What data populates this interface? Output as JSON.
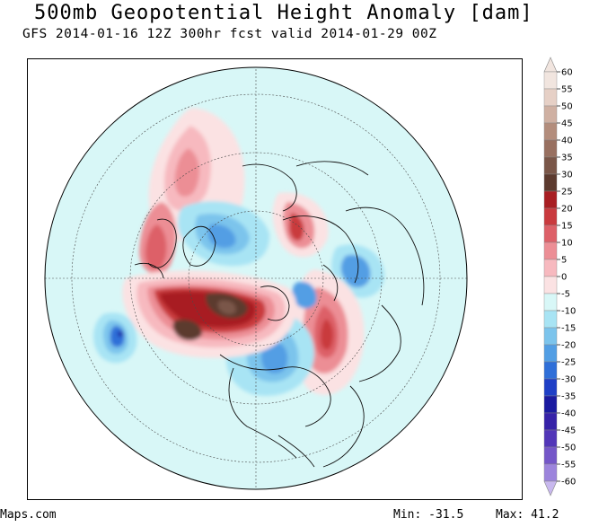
{
  "title": "500mb Geopotential Height Anomaly [dam]",
  "subtitle": "GFS 2014-01-16 12Z 300hr fcst valid 2014-01-29 00Z",
  "footer": {
    "credit": "Maps.com",
    "min_label": "Min:",
    "min_value": "-31.5",
    "max_label": "Max:",
    "max_value": "41.2"
  },
  "colorbar": {
    "levels": [
      {
        "label": "60",
        "color": "#f1e5df"
      },
      {
        "label": "55",
        "color": "#e6d0c6"
      },
      {
        "label": "50",
        "color": "#cfb0a2"
      },
      {
        "label": "45",
        "color": "#b38d7c"
      },
      {
        "label": "40",
        "color": "#987060"
      },
      {
        "label": "35",
        "color": "#7a5648"
      },
      {
        "label": "30",
        "color": "#5c3a2e"
      },
      {
        "label": "25",
        "color": "#a81e22"
      },
      {
        "label": "20",
        "color": "#c93a3e"
      },
      {
        "label": "15",
        "color": "#dd6068"
      },
      {
        "label": "10",
        "color": "#ec8e95"
      },
      {
        "label": "5",
        "color": "#f7b9bf"
      },
      {
        "label": "0",
        "color": "#fbe2e3"
      },
      {
        "label": "-5",
        "color": "#d8f7f7"
      },
      {
        "label": "-10",
        "color": "#a8e4f4"
      },
      {
        "label": "-15",
        "color": "#7cc4ec"
      },
      {
        "label": "-20",
        "color": "#529ee4"
      },
      {
        "label": "-25",
        "color": "#2f6fd8"
      },
      {
        "label": "-30",
        "color": "#1e3fc6"
      },
      {
        "label": "-35",
        "color": "#1a1aa0"
      },
      {
        "label": "-40",
        "color": "#3622a8"
      },
      {
        "label": "-45",
        "color": "#5236b8"
      },
      {
        "label": "-50",
        "color": "#7456c8"
      },
      {
        "label": "-55",
        "color": "#9c84dc"
      },
      {
        "label": "-60",
        "color": "#c8b8ee"
      }
    ]
  },
  "map": {
    "projection": "polar-stereographic-north",
    "background_color": "#d8f7f7",
    "features": [
      {
        "name": "alaska-ridge",
        "sign": "positive",
        "color": "#dd6068"
      },
      {
        "name": "arctic-trough",
        "sign": "negative",
        "color": "#529ee4"
      },
      {
        "name": "north-pacific-ridge",
        "sign": "positive",
        "color": "#5c3a2e"
      },
      {
        "name": "east-pacific-low",
        "sign": "negative",
        "color": "#1a1aa0"
      },
      {
        "name": "eastern-north-america-trough",
        "sign": "negative",
        "color": "#529ee4"
      },
      {
        "name": "north-atlantic-ridge",
        "sign": "positive",
        "color": "#c93a3e"
      },
      {
        "name": "siberia-ridge",
        "sign": "positive",
        "color": "#c93a3e"
      },
      {
        "name": "europe-trough",
        "sign": "negative",
        "color": "#529ee4"
      }
    ]
  }
}
